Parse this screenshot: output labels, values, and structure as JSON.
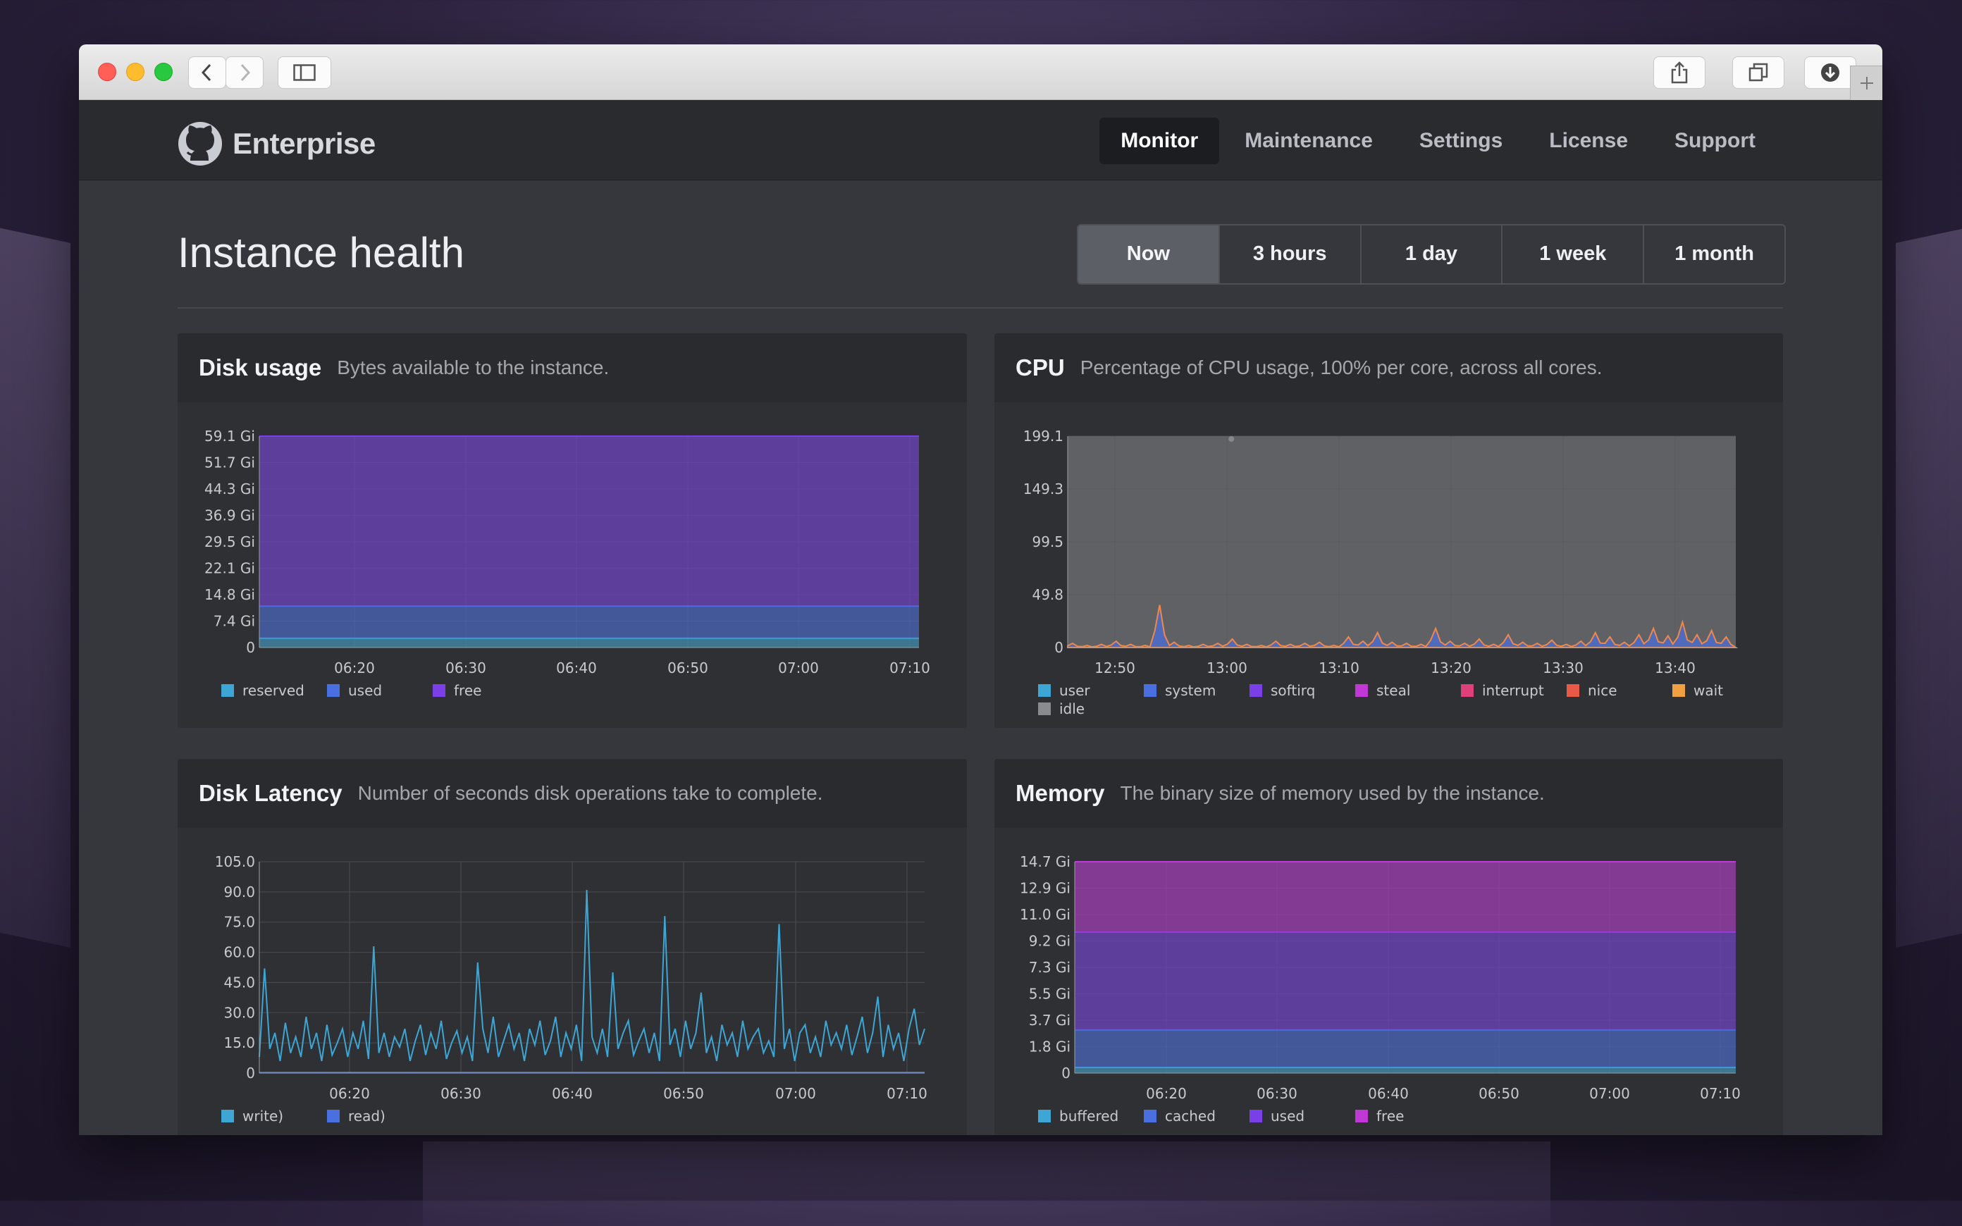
{
  "window": {
    "traffic_lights": [
      "#ff5f57",
      "#febc2e",
      "#28c840"
    ]
  },
  "brand": {
    "name": "Enterprise",
    "icon": "octocat-icon"
  },
  "nav": [
    {
      "label": "Monitor",
      "active": true
    },
    {
      "label": "Maintenance",
      "active": false
    },
    {
      "label": "Settings",
      "active": false
    },
    {
      "label": "License",
      "active": false
    },
    {
      "label": "Support",
      "active": false
    }
  ],
  "page": {
    "title": "Instance health"
  },
  "ranges": [
    {
      "label": "Now",
      "active": true
    },
    {
      "label": "3 hours",
      "active": false
    },
    {
      "label": "1 day",
      "active": false
    },
    {
      "label": "1 week",
      "active": false
    },
    {
      "label": "1 month",
      "active": false
    }
  ],
  "panels": {
    "disk_usage": {
      "title": "Disk usage",
      "subtitle": "Bytes available to the instance."
    },
    "cpu": {
      "title": "CPU",
      "subtitle": "Percentage of CPU usage, 100% per core, across all cores."
    },
    "disk_latency": {
      "title": "Disk Latency",
      "subtitle": "Number of seconds disk operations take to complete."
    },
    "memory": {
      "title": "Memory",
      "subtitle": "The binary size of memory used by the instance."
    }
  },
  "chart_data": [
    {
      "id": "disk_usage",
      "type": "area",
      "stacked": true,
      "yticks": [
        "0",
        "7.4 Gi",
        "14.8 Gi",
        "22.1 Gi",
        "29.5 Gi",
        "36.9 Gi",
        "44.3 Gi",
        "51.7 Gi",
        "59.1 Gi"
      ],
      "ylim": [
        0,
        59.1
      ],
      "xticks": [
        "06:20",
        "06:30",
        "06:40",
        "06:50",
        "07:00",
        "07:10"
      ],
      "series": [
        {
          "name": "reserved",
          "color": "#3ea6d4",
          "values": [
            2.6,
            2.6
          ]
        },
        {
          "name": "used",
          "color": "#4a6fe0",
          "values": [
            9.0,
            9.0
          ]
        },
        {
          "name": "free",
          "color": "#7a3fe6",
          "values": [
            47.5,
            47.5
          ]
        }
      ]
    },
    {
      "id": "cpu",
      "type": "area",
      "stacked": true,
      "yticks": [
        "0",
        "49.8",
        "99.5",
        "149.3",
        "199.1"
      ],
      "ylim": [
        0,
        199.1
      ],
      "xticks": [
        "12:50",
        "13:00",
        "13:10",
        "13:20",
        "13:30",
        "13:40"
      ],
      "series": [
        {
          "name": "user",
          "color": "#3ea6d4"
        },
        {
          "name": "system",
          "color": "#4a6fe0"
        },
        {
          "name": "softirq",
          "color": "#7a3fe6"
        },
        {
          "name": "steal",
          "color": "#c038d6"
        },
        {
          "name": "interrupt",
          "color": "#e0407a"
        },
        {
          "name": "nice",
          "color": "#e85a45"
        },
        {
          "name": "wait",
          "color": "#f0a040"
        },
        {
          "name": "idle",
          "color": "#8a8b8f",
          "value": 199.1
        }
      ],
      "peak_values": [
        4,
        2,
        3,
        6,
        3,
        2,
        40,
        5,
        2,
        3,
        4,
        8,
        3,
        2,
        6,
        3,
        4,
        5,
        2,
        10,
        6,
        14,
        5,
        4,
        3,
        18,
        6,
        4,
        8,
        3,
        12,
        5,
        4,
        7,
        3,
        6,
        14,
        10,
        5,
        12,
        18,
        11,
        24,
        12,
        16,
        10
      ]
    },
    {
      "id": "disk_latency",
      "type": "line",
      "yticks": [
        "0",
        "15.0",
        "30.0",
        "45.0",
        "60.0",
        "75.0",
        "90.0",
        "105.0"
      ],
      "ylim": [
        0,
        105
      ],
      "xticks": [
        "06:20",
        "06:30",
        "06:40",
        "06:50",
        "07:00",
        "07:10"
      ],
      "series": [
        {
          "name": "write)",
          "color": "#3ea6d4",
          "values": [
            8,
            52,
            12,
            20,
            6,
            25,
            10,
            18,
            8,
            28,
            12,
            20,
            6,
            24,
            9,
            15,
            22,
            8,
            20,
            12,
            26,
            7,
            63,
            10,
            20,
            8,
            18,
            13,
            22,
            6,
            16,
            24,
            9,
            20,
            12,
            26,
            7,
            15,
            21,
            10,
            18,
            6,
            55,
            22,
            10,
            28,
            8,
            16,
            24,
            12,
            20,
            6,
            22,
            14,
            26,
            9,
            16,
            28,
            8,
            20,
            12,
            24,
            6,
            91,
            18,
            10,
            22,
            8,
            50,
            12,
            20,
            26,
            9,
            16,
            22,
            10,
            20,
            6,
            78,
            14,
            22,
            8,
            26,
            12,
            20,
            40,
            10,
            18,
            6,
            24,
            14,
            20,
            8,
            26,
            12,
            18,
            22,
            10,
            16,
            8,
            74,
            12,
            22,
            6,
            20,
            24,
            10,
            18,
            8,
            26,
            14,
            20,
            12,
            24,
            9,
            18,
            28,
            10,
            20,
            38,
            8,
            24,
            12,
            20,
            6,
            22,
            32,
            14,
            22
          ]
        },
        {
          "name": "read)",
          "color": "#4a6fe0"
        }
      ]
    },
    {
      "id": "memory",
      "type": "area",
      "stacked": true,
      "yticks": [
        "0",
        "1.8 Gi",
        "3.7 Gi",
        "5.5 Gi",
        "7.3 Gi",
        "9.2 Gi",
        "11.0 Gi",
        "12.9 Gi",
        "14.7 Gi"
      ],
      "ylim": [
        0,
        14.7
      ],
      "xticks": [
        "06:20",
        "06:30",
        "06:40",
        "06:50",
        "07:00",
        "07:10"
      ],
      "series": [
        {
          "name": "buffered",
          "color": "#3ea6d4",
          "values": [
            0.4,
            0.4
          ]
        },
        {
          "name": "cached",
          "color": "#4a6fe0",
          "values": [
            2.6,
            2.6
          ]
        },
        {
          "name": "used",
          "color": "#7a3fe6",
          "values": [
            6.8,
            6.8
          ]
        },
        {
          "name": "free",
          "color": "#c038d6",
          "values": [
            4.9,
            4.9
          ]
        }
      ]
    }
  ]
}
